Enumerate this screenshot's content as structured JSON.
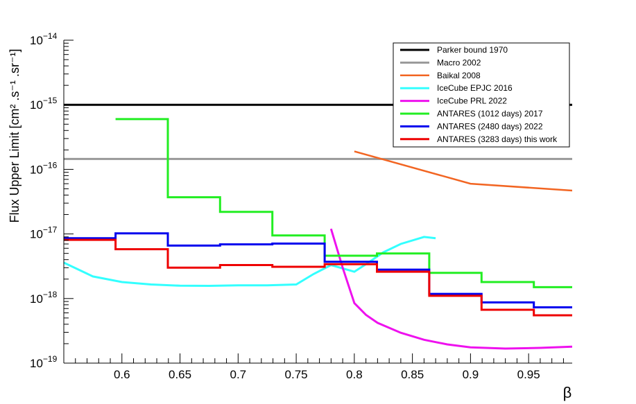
{
  "chart_data": {
    "type": "line",
    "title": "",
    "xlabel": "β",
    "ylabel": "Flux Upper Limit [cm² .s⁻¹ .sr⁻¹]",
    "xlim": [
      0.55,
      0.9875
    ],
    "ylim": [
      1e-19,
      1e-14
    ],
    "y_scale": "log",
    "grid": false,
    "legend_position": "top-right",
    "x_ticks": [
      {
        "value": 0.6,
        "label": "0.6"
      },
      {
        "value": 0.65,
        "label": "0.65"
      },
      {
        "value": 0.7,
        "label": "0.7"
      },
      {
        "value": 0.75,
        "label": "0.75"
      },
      {
        "value": 0.8,
        "label": "0.8"
      },
      {
        "value": 0.85,
        "label": "0.85"
      },
      {
        "value": 0.9,
        "label": "0.9"
      },
      {
        "value": 0.95,
        "label": "0.95"
      }
    ],
    "y_ticks": [
      {
        "value": 1e-14,
        "base": "10",
        "exp": "−14"
      },
      {
        "value": 1e-15,
        "base": "10",
        "exp": "−15"
      },
      {
        "value": 1e-16,
        "base": "10",
        "exp": "−16"
      },
      {
        "value": 1e-17,
        "base": "10",
        "exp": "−17"
      },
      {
        "value": 1e-18,
        "base": "10",
        "exp": "−18"
      },
      {
        "value": 1e-19,
        "base": "10",
        "exp": "−19"
      }
    ],
    "series": [
      {
        "name": "Parker bound 1970",
        "color": "#000000",
        "width": 3,
        "style": "line",
        "x": [
          0.55,
          0.9875
        ],
        "y": [
          1e-15,
          1e-15
        ]
      },
      {
        "name": "Macro 2002",
        "color": "#999999",
        "width": 3,
        "style": "line",
        "x": [
          0.55,
          0.9875
        ],
        "y": [
          1.45e-16,
          1.45e-16
        ]
      },
      {
        "name": "Baikal 2008",
        "color": "#f26522",
        "width": 2.5,
        "style": "line",
        "x": [
          0.8,
          0.9,
          0.9875
        ],
        "y": [
          1.9e-16,
          6e-17,
          4.7e-17
        ]
      },
      {
        "name": "IceCube EPJC 2016",
        "color": "#33ffff",
        "width": 3,
        "style": "line",
        "x": [
          0.55,
          0.575,
          0.6,
          0.625,
          0.65,
          0.675,
          0.7,
          0.725,
          0.75,
          0.765,
          0.78,
          0.8,
          0.81,
          0.825,
          0.84,
          0.86,
          0.87
        ],
        "y": [
          3.6e-18,
          2.2e-18,
          1.8e-18,
          1.65e-18,
          1.58e-18,
          1.57e-18,
          1.6e-18,
          1.6e-18,
          1.65e-18,
          2.4e-18,
          3.3e-18,
          2.6e-18,
          3.4e-18,
          5.2e-18,
          7e-18,
          9e-18,
          8.6e-18
        ]
      },
      {
        "name": "IceCube PRL 2022",
        "color": "#ee11ee",
        "width": 3,
        "style": "line",
        "x": [
          0.78,
          0.79,
          0.8,
          0.81,
          0.82,
          0.84,
          0.86,
          0.88,
          0.9,
          0.93,
          0.96,
          0.9875
        ],
        "y": [
          1.2e-17,
          3e-18,
          8.5e-19,
          5.6e-19,
          4.2e-19,
          2.95e-19,
          2.3e-19,
          1.95e-19,
          1.75e-19,
          1.68e-19,
          1.72e-19,
          1.8e-19
        ]
      },
      {
        "name": "ANTARES (1012 days) 2017",
        "color": "#22ee22",
        "width": 3,
        "style": "step",
        "edges": [
          0.5945,
          0.6395,
          0.6845,
          0.7295,
          0.7745,
          0.8195,
          0.8645,
          0.9095,
          0.9545,
          0.9875
        ],
        "y": [
          6e-16,
          3.7e-17,
          2.2e-17,
          9.5e-18,
          4.6e-18,
          5e-18,
          2.5e-18,
          1.8e-18,
          1.5e-18
        ]
      },
      {
        "name": "ANTARES (2480 days) 2022",
        "color": "#0000ee",
        "width": 3,
        "style": "step",
        "edges": [
          0.55,
          0.5945,
          0.6395,
          0.6845,
          0.7295,
          0.7745,
          0.8195,
          0.8645,
          0.9095,
          0.9545,
          0.9875
        ],
        "y": [
          8.6e-18,
          1.02e-17,
          6.6e-18,
          6.9e-18,
          7.1e-18,
          3.7e-18,
          2.8e-18,
          1.18e-18,
          8.7e-19,
          7.3e-19
        ]
      },
      {
        "name": "ANTARES (3283 days) this work",
        "color": "#ee0000",
        "width": 3,
        "style": "step",
        "edges": [
          0.55,
          0.5945,
          0.6395,
          0.6845,
          0.7295,
          0.7745,
          0.8195,
          0.8645,
          0.9095,
          0.9545,
          0.9875
        ],
        "y": [
          8.1e-18,
          5.8e-18,
          3e-18,
          3.3e-18,
          3.1e-18,
          3.4e-18,
          2.6e-18,
          1.1e-18,
          6.7e-19,
          5.5e-19
        ]
      }
    ]
  }
}
